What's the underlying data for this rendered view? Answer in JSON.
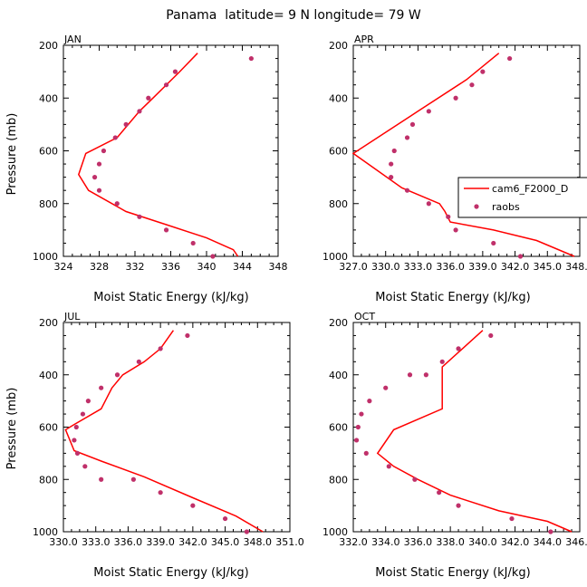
{
  "figure": {
    "title": "Panama  latitude= 9 N longitude= 79 W",
    "xlabel": "Moist Static Energy (kJ/kg)",
    "ylabel": "Pressure (mb)"
  },
  "legend": {
    "series": [
      {
        "name": "cam6_F2000_D",
        "kind": "line",
        "color": "#ff0000"
      },
      {
        "name": "raobs",
        "kind": "marker",
        "color": "#c0306a"
      }
    ]
  },
  "chart_data": [
    {
      "type": "line",
      "month": "JAN",
      "xlim": [
        324,
        348
      ],
      "ylim": [
        1000,
        200
      ],
      "xticks": [
        324,
        328,
        332,
        336,
        340,
        344,
        348
      ],
      "xticklabels": [
        "324",
        "328",
        "332",
        "336",
        "340",
        "344",
        "348"
      ],
      "yticks": [
        200,
        400,
        600,
        800,
        1000
      ],
      "yticklabels": [
        "200",
        "400",
        "600",
        "800",
        "1000"
      ],
      "series": [
        {
          "name": "cam6_F2000_D",
          "kind": "line",
          "x": [
            339.0,
            337.0,
            334.0,
            332.5,
            330.0,
            326.5,
            325.7,
            326.8,
            331.0,
            335.5,
            340.0,
            343.0,
            343.5
          ],
          "y": [
            230,
            300,
            400,
            450,
            550,
            610,
            690,
            750,
            830,
            880,
            930,
            975,
            1000
          ]
        },
        {
          "name": "raobs",
          "kind": "marker",
          "x": [
            345.0,
            336.5,
            335.5,
            333.5,
            332.5,
            331.0,
            329.8,
            328.5,
            328.0,
            327.5,
            328.0,
            330.0,
            332.5,
            335.5,
            338.5,
            340.7
          ],
          "y": [
            250,
            300,
            350,
            400,
            450,
            500,
            550,
            600,
            650,
            700,
            750,
            800,
            850,
            900,
            950,
            1000
          ]
        }
      ]
    },
    {
      "type": "line",
      "month": "APR",
      "xlim": [
        327.0,
        348.0
      ],
      "ylim": [
        1000,
        200
      ],
      "xticks": [
        327.0,
        330.0,
        333.0,
        336.0,
        339.0,
        342.0,
        345.0,
        348.0
      ],
      "xticklabels": [
        "327.0",
        "330.0",
        "333.0",
        "336.0",
        "339.0",
        "342.0",
        "345.0",
        "348.0"
      ],
      "yticks": [
        200,
        400,
        600,
        800,
        1000
      ],
      "yticklabels": [
        "200",
        "400",
        "600",
        "800",
        "1000"
      ],
      "series": [
        {
          "name": "cam6_F2000_D",
          "kind": "line",
          "x": [
            340.5,
            337.5,
            333.0,
            327.0,
            331.5,
            335.0,
            335.5,
            336.0,
            340.0,
            344.0,
            347.5
          ],
          "y": [
            230,
            330,
            450,
            610,
            740,
            800,
            830,
            870,
            900,
            940,
            1000
          ]
        },
        {
          "name": "raobs",
          "kind": "marker",
          "x": [
            341.5,
            339.0,
            338.0,
            336.5,
            334.0,
            332.5,
            332.0,
            330.8,
            330.5,
            330.5,
            332.0,
            334.0,
            335.8,
            336.5,
            340.0,
            342.5
          ],
          "y": [
            250,
            300,
            350,
            400,
            450,
            500,
            550,
            600,
            650,
            700,
            750,
            800,
            850,
            900,
            950,
            1000
          ]
        }
      ]
    },
    {
      "type": "line",
      "month": "JUL",
      "xlim": [
        330.0,
        351.0
      ],
      "ylim": [
        1000,
        200
      ],
      "xticks": [
        330.0,
        333.0,
        336.0,
        339.0,
        342.0,
        345.0,
        348.0,
        351.0
      ],
      "xticklabels": [
        "330.0",
        "333.0",
        "336.0",
        "339.0",
        "342.0",
        "345.0",
        "348.0",
        "351.0"
      ],
      "yticks": [
        200,
        400,
        600,
        800,
        1000
      ],
      "yticklabels": [
        "200",
        "400",
        "600",
        "800",
        "1000"
      ],
      "series": [
        {
          "name": "cam6_F2000_D",
          "kind": "line",
          "x": [
            340.2,
            339.0,
            337.5,
            335.5,
            334.5,
            333.5,
            331.0,
            330.2,
            331.0,
            333.5,
            337.5,
            342.0,
            346.0,
            348.5
          ],
          "y": [
            230,
            300,
            350,
            400,
            450,
            530,
            590,
            610,
            690,
            730,
            790,
            870,
            940,
            1000
          ]
        },
        {
          "name": "raobs",
          "kind": "marker",
          "x": [
            341.5,
            339.0,
            337.0,
            335.0,
            333.5,
            332.3,
            331.8,
            331.2,
            331.0,
            331.3,
            332.0,
            333.5,
            336.5,
            339.0,
            342.0,
            345.0,
            347.0
          ],
          "y": [
            250,
            300,
            350,
            400,
            450,
            500,
            550,
            600,
            650,
            700,
            750,
            800,
            800,
            850,
            900,
            950,
            1000
          ]
        }
      ]
    },
    {
      "type": "line",
      "month": "OCT",
      "xlim": [
        332.0,
        346.0
      ],
      "ylim": [
        1000,
        200
      ],
      "xticks": [
        332.0,
        334.0,
        336.0,
        338.0,
        340.0,
        342.0,
        344.0,
        346.0
      ],
      "xticklabels": [
        "332.0",
        "334.0",
        "336.0",
        "338.0",
        "340.0",
        "342.0",
        "344.0",
        "346.0"
      ],
      "yticks": [
        200,
        400,
        600,
        800,
        1000
      ],
      "yticklabels": [
        "200",
        "400",
        "600",
        "800",
        "1000"
      ],
      "series": [
        {
          "name": "cam6_F2000_D",
          "kind": "line",
          "x": [
            340.0,
            337.5,
            337.5,
            337.5,
            334.5,
            333.5,
            334.5,
            336.0,
            338.0,
            341.0,
            344.0,
            345.5
          ],
          "y": [
            230,
            370,
            400,
            530,
            610,
            700,
            750,
            800,
            860,
            920,
            960,
            1000
          ]
        },
        {
          "name": "raobs",
          "kind": "marker",
          "x": [
            340.5,
            338.5,
            337.5,
            336.5,
            335.5,
            334.0,
            333.0,
            332.5,
            332.3,
            332.2,
            332.8,
            334.2,
            335.8,
            337.3,
            338.5,
            341.8,
            344.2
          ],
          "y": [
            250,
            300,
            350,
            400,
            400,
            450,
            500,
            550,
            600,
            650,
            700,
            750,
            800,
            850,
            900,
            950,
            1000
          ]
        }
      ]
    }
  ]
}
